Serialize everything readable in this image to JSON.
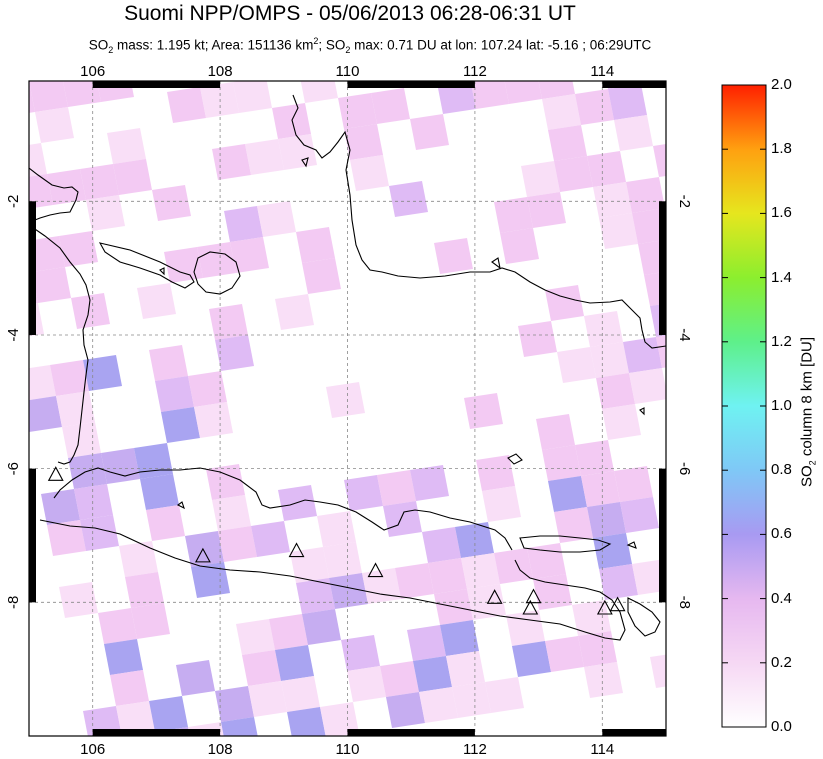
{
  "title": "Suomi NPP/OMPS - 05/06/2013 06:28-06:31 UT",
  "subtitle": {
    "so2_mass_prefix": "SO",
    "so2_mass_label": " mass: 1.195 kt; Area: 151136 km",
    "area_suffix": "; SO",
    "max_text": " max: 0.71 DU at lon: 107.24 lat: -5.16 ; 06:29UTC",
    "sub2": "2",
    "sup2": "2"
  },
  "map": {
    "lon_range": [
      105,
      115
    ],
    "lat_range": [
      -10,
      -0.2
    ],
    "x_ticks": [
      "106",
      "108",
      "110",
      "112",
      "114"
    ],
    "y_ticks": [
      "-2",
      "-4",
      "-6",
      "-8"
    ],
    "x_tick_values": [
      106,
      108,
      110,
      112,
      114
    ],
    "y_tick_values": [
      -2,
      -4,
      -6,
      -8
    ],
    "volcano_markers": [
      {
        "lon": 105.42,
        "lat": -6.1
      },
      {
        "lon": 107.73,
        "lat": -7.32
      },
      {
        "lon": 109.2,
        "lat": -7.24
      },
      {
        "lon": 110.44,
        "lat": -7.54
      },
      {
        "lon": 112.31,
        "lat": -7.94
      },
      {
        "lon": 112.92,
        "lat": -7.93
      },
      {
        "lon": 112.87,
        "lat": -8.1
      },
      {
        "lon": 114.04,
        "lat": -8.1
      },
      {
        "lon": 114.24,
        "lat": -8.05
      }
    ]
  },
  "colorbar": {
    "ticks": [
      "2.0",
      "1.8",
      "1.6",
      "1.4",
      "1.2",
      "1.0",
      "0.8",
      "0.6",
      "0.4",
      "0.2",
      "0.0"
    ],
    "title_prefix": "SO",
    "title_sub": "2",
    "title_suffix": " column 8 km [DU]",
    "range": [
      0,
      2
    ]
  },
  "colors": {
    "land_outline": "#000000",
    "grid": "#888888",
    "pixel_light": "#f8dcf6",
    "pixel_pink": "#f2c4f2",
    "pixel_lilac": "#dcb4f4",
    "pixel_purple": "#c0a4f0",
    "pixel_blue": "#a09af0"
  }
}
